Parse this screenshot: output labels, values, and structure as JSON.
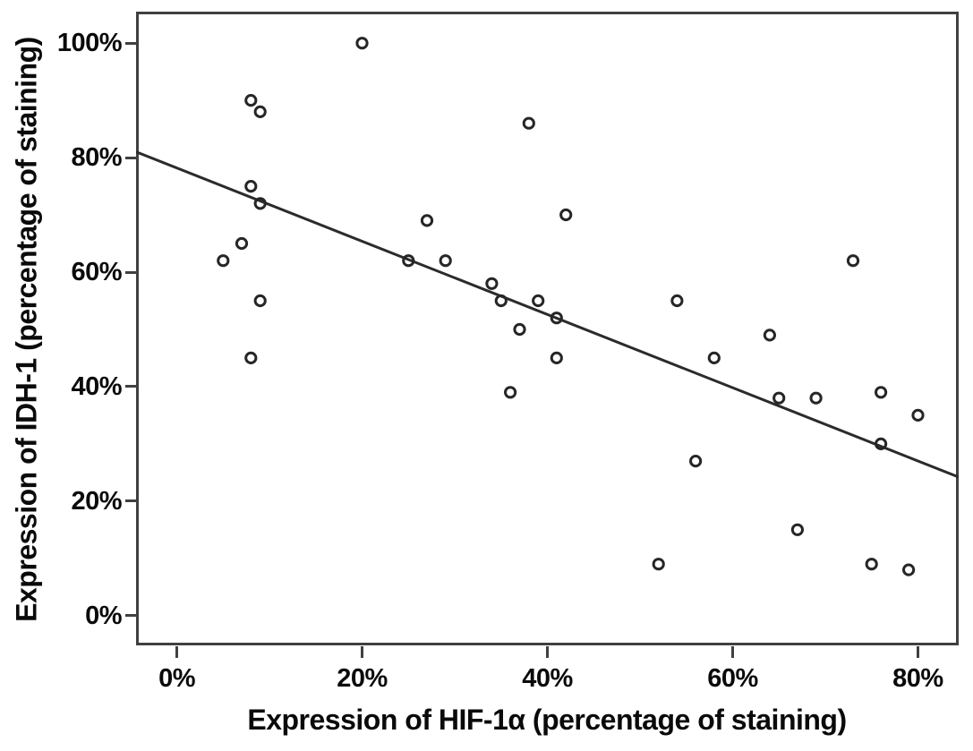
{
  "chart_data": {
    "type": "scatter",
    "title": "",
    "xlabel": "Expression of HIF-1α (percentage of staining)",
    "ylabel": "Expression of IDH-1 (percentage of staining)",
    "x_tick_labels": [
      "0%",
      "20%",
      "40%",
      "60%",
      "80%"
    ],
    "x_tick_values": [
      0,
      20,
      40,
      60,
      80
    ],
    "y_tick_labels": [
      "0%",
      "20%",
      "40%",
      "60%",
      "80%",
      "100%"
    ],
    "y_tick_values": [
      0,
      20,
      40,
      60,
      80,
      100
    ],
    "xlim": [
      -4.4,
      84.4
    ],
    "ylim": [
      -5.2,
      105.5
    ],
    "grid": false,
    "legend": "none",
    "marker": "open-circle",
    "points": [
      [
        5,
        62
      ],
      [
        7,
        65
      ],
      [
        8,
        45
      ],
      [
        8,
        75
      ],
      [
        8,
        90
      ],
      [
        9,
        55
      ],
      [
        9,
        72
      ],
      [
        9,
        88
      ],
      [
        20,
        100
      ],
      [
        25,
        62
      ],
      [
        27,
        69
      ],
      [
        29,
        62
      ],
      [
        34,
        58
      ],
      [
        35,
        55
      ],
      [
        36,
        39
      ],
      [
        37,
        50
      ],
      [
        38,
        86
      ],
      [
        39,
        55
      ],
      [
        41,
        45
      ],
      [
        41,
        52
      ],
      [
        42,
        70
      ],
      [
        52,
        9
      ],
      [
        54,
        55
      ],
      [
        56,
        27
      ],
      [
        58,
        45
      ],
      [
        64,
        49
      ],
      [
        65,
        38
      ],
      [
        67,
        15
      ],
      [
        69,
        38
      ],
      [
        73,
        62
      ],
      [
        75,
        9
      ],
      [
        76,
        30
      ],
      [
        76,
        39
      ],
      [
        79,
        8
      ],
      [
        80,
        35
      ]
    ],
    "trend_line": {
      "x1": -4.4,
      "y1": 81.0,
      "x2": 84.4,
      "y2": 24.2
    },
    "colors": {
      "background": "#ffffff",
      "frame": "#404040",
      "marker": "#262626",
      "trend_line": "#2b2b2b",
      "text": "#0a0a0a"
    }
  }
}
